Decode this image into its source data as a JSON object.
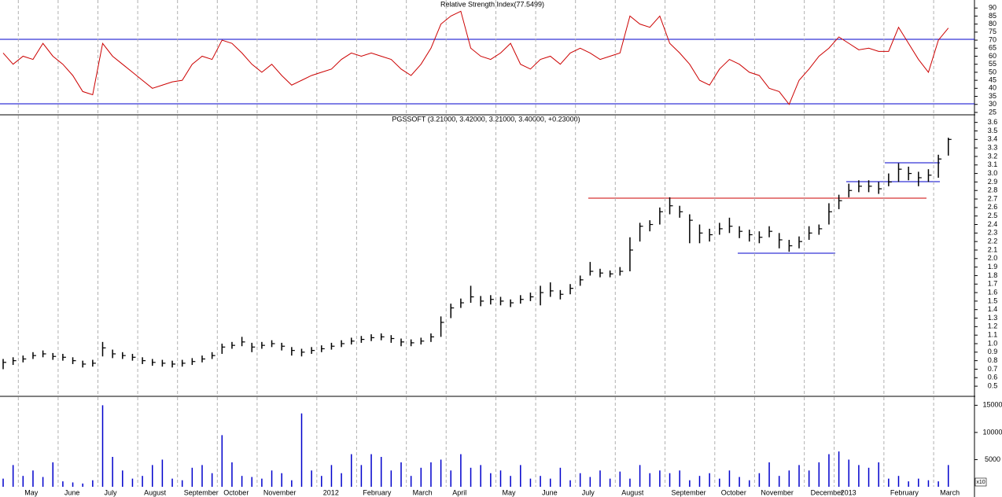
{
  "chart_data": [
    {
      "type": "line",
      "title": "Relative Strength Index(77.5499)",
      "color": "#cc0000",
      "values": [
        62,
        55,
        60,
        58,
        68,
        60,
        55,
        48,
        38,
        36,
        68,
        60,
        55,
        50,
        45,
        40,
        42,
        44,
        45,
        55,
        60,
        58,
        70,
        68,
        62,
        55,
        50,
        55,
        48,
        42,
        45,
        48,
        50,
        52,
        58,
        62,
        60,
        62,
        60,
        58,
        52,
        48,
        55,
        65,
        80,
        85,
        88,
        65,
        60,
        58,
        62,
        68,
        55,
        52,
        58,
        60,
        55,
        62,
        65,
        62,
        58,
        60,
        62,
        85,
        80,
        78,
        85,
        68,
        62,
        55,
        45,
        42,
        52,
        58,
        55,
        50,
        48,
        40,
        38,
        30,
        45,
        52,
        60,
        65,
        72,
        68,
        64,
        65,
        63,
        63,
        78,
        68,
        58,
        50,
        70,
        77.5499
      ],
      "ylim": [
        24,
        95
      ],
      "yticks": [
        25,
        30,
        35,
        40,
        45,
        50,
        55,
        60,
        65,
        70,
        75,
        80,
        85,
        90
      ],
      "grid": true
    },
    {
      "type": "ohlc",
      "title": "PGSSOFT (3.21000, 3.42000, 3.21000, 3.40000, +0.23000)",
      "color": "#000000",
      "high": [
        0.82,
        0.84,
        0.86,
        0.9,
        0.92,
        0.89,
        0.88,
        0.84,
        0.8,
        0.81,
        1.02,
        0.93,
        0.9,
        0.88,
        0.84,
        0.82,
        0.81,
        0.8,
        0.81,
        0.83,
        0.86,
        0.9,
        1.0,
        1.02,
        1.08,
        1.01,
        1.02,
        1.04,
        1.01,
        0.96,
        0.94,
        0.96,
        0.98,
        1.01,
        1.04,
        1.07,
        1.09,
        1.11,
        1.12,
        1.1,
        1.06,
        1.05,
        1.07,
        1.12,
        1.32,
        1.47,
        1.53,
        1.68,
        1.56,
        1.57,
        1.55,
        1.52,
        1.57,
        1.6,
        1.68,
        1.72,
        1.63,
        1.7,
        1.8,
        1.96,
        1.88,
        1.86,
        1.9,
        2.25,
        2.42,
        2.45,
        2.6,
        2.72,
        2.62,
        2.52,
        2.4,
        2.35,
        2.42,
        2.48,
        2.38,
        2.34,
        2.32,
        2.38,
        2.3,
        2.22,
        2.26,
        2.38,
        2.4,
        2.65,
        2.75,
        2.88,
        2.92,
        2.92,
        2.9,
        3.0,
        3.12,
        3.08,
        3.02,
        3.05,
        3.22,
        3.42
      ],
      "low": [
        0.7,
        0.75,
        0.78,
        0.82,
        0.84,
        0.81,
        0.8,
        0.76,
        0.72,
        0.73,
        0.85,
        0.83,
        0.82,
        0.8,
        0.76,
        0.74,
        0.73,
        0.72,
        0.73,
        0.75,
        0.78,
        0.82,
        0.88,
        0.94,
        0.97,
        0.9,
        0.94,
        0.96,
        0.92,
        0.86,
        0.85,
        0.88,
        0.9,
        0.93,
        0.96,
        0.99,
        1.01,
        1.03,
        1.04,
        1.01,
        0.97,
        0.97,
        0.99,
        1.02,
        1.08,
        1.3,
        1.42,
        1.48,
        1.44,
        1.46,
        1.45,
        1.43,
        1.47,
        1.5,
        1.45,
        1.55,
        1.52,
        1.58,
        1.68,
        1.8,
        1.78,
        1.78,
        1.8,
        1.85,
        2.2,
        2.32,
        2.4,
        2.52,
        2.48,
        2.18,
        2.18,
        2.2,
        2.28,
        2.3,
        2.24,
        2.2,
        2.18,
        2.25,
        2.12,
        2.08,
        2.12,
        2.22,
        2.28,
        2.4,
        2.58,
        2.72,
        2.78,
        2.78,
        2.76,
        2.85,
        2.9,
        2.92,
        2.85,
        2.9,
        2.95,
        3.21
      ],
      "close": [
        0.78,
        0.8,
        0.82,
        0.86,
        0.88,
        0.85,
        0.84,
        0.8,
        0.76,
        0.77,
        0.95,
        0.88,
        0.86,
        0.84,
        0.8,
        0.78,
        0.77,
        0.76,
        0.77,
        0.79,
        0.82,
        0.86,
        0.96,
        0.98,
        1.02,
        0.96,
        0.98,
        1.0,
        0.97,
        0.92,
        0.9,
        0.92,
        0.94,
        0.97,
        1.0,
        1.03,
        1.05,
        1.07,
        1.08,
        1.06,
        1.02,
        1.01,
        1.03,
        1.08,
        1.25,
        1.42,
        1.48,
        1.55,
        1.5,
        1.52,
        1.5,
        1.48,
        1.52,
        1.55,
        1.6,
        1.62,
        1.58,
        1.65,
        1.75,
        1.85,
        1.83,
        1.82,
        1.85,
        2.1,
        2.38,
        2.4,
        2.55,
        2.62,
        2.55,
        2.45,
        2.3,
        2.28,
        2.35,
        2.38,
        2.32,
        2.28,
        2.25,
        2.32,
        2.22,
        2.15,
        2.2,
        2.3,
        2.35,
        2.55,
        2.68,
        2.8,
        2.85,
        2.85,
        2.82,
        2.9,
        3.05,
        3.0,
        2.95,
        2.98,
        3.17,
        3.4
      ],
      "ylim": [
        0.39,
        3.68
      ],
      "yticks": [
        0.5,
        0.6,
        0.7,
        0.8,
        0.9,
        {
          "value": 1,
          "label": "1.0"
        },
        1.1,
        1.2,
        1.3,
        1.4,
        1.5,
        1.6,
        1.7,
        1.8,
        1.9,
        {
          "value": 2,
          "label": "2.0"
        },
        2.1,
        2.2,
        2.3,
        2.4,
        2.5,
        2.6,
        2.7,
        2.8,
        2.9,
        {
          "value": 3,
          "label": "3.0"
        },
        3.1,
        3.2,
        3.3,
        3.4,
        3.5,
        3.6
      ],
      "grid": true
    },
    {
      "type": "bar",
      "color": "#0000cc",
      "annotation": "x10",
      "categories": [
        null,
        null,
        "May",
        null,
        null,
        null,
        "June",
        null,
        null,
        null,
        "July",
        null,
        null,
        null,
        "August",
        null,
        null,
        null,
        "September",
        null,
        null,
        null,
        "October",
        null,
        null,
        null,
        "November",
        null,
        null,
        null,
        null,
        null,
        "2012",
        null,
        null,
        null,
        "February",
        null,
        null,
        null,
        null,
        "March",
        null,
        null,
        null,
        "April",
        null,
        null,
        null,
        null,
        "May",
        null,
        null,
        null,
        "June",
        null,
        null,
        null,
        "July",
        null,
        null,
        null,
        "August",
        null,
        null,
        null,
        null,
        "September",
        null,
        null,
        null,
        null,
        "October",
        null,
        null,
        null,
        "November",
        null,
        null,
        null,
        null,
        "December",
        null,
        null,
        "2013",
        null,
        null,
        null,
        null,
        "February",
        null,
        null,
        null,
        null,
        "March",
        null
      ],
      "values": [
        1500,
        4000,
        2000,
        3000,
        1800,
        4500,
        1000,
        800,
        600,
        1200,
        15000,
        5500,
        3000,
        1500,
        2000,
        4000,
        5000,
        1500,
        1200,
        3500,
        4000,
        2500,
        9500,
        4500,
        2000,
        1800,
        1500,
        3000,
        2500,
        1200,
        13500,
        3000,
        2000,
        4000,
        2500,
        6000,
        4000,
        6000,
        5500,
        3000,
        4500,
        2000,
        3500,
        4500,
        5000,
        3000,
        6000,
        3500,
        4000,
        2500,
        3000,
        2000,
        4000,
        1500,
        2000,
        1500,
        3500,
        1200,
        2500,
        1800,
        3000,
        1500,
        2800,
        1500,
        4000,
        2500,
        3000,
        2500,
        3000,
        1200,
        2000,
        2500,
        1500,
        3000,
        1800,
        1200,
        2500,
        4500,
        2000,
        3000,
        4000,
        3000,
        4500,
        6000,
        6500,
        5000,
        4000,
        3500,
        4500,
        1500,
        2000,
        1000,
        1500,
        1200,
        1000,
        4000
      ],
      "ylim": [
        0,
        16500
      ],
      "yticks": [
        5000,
        10000,
        15000
      ],
      "grid": true
    }
  ]
}
